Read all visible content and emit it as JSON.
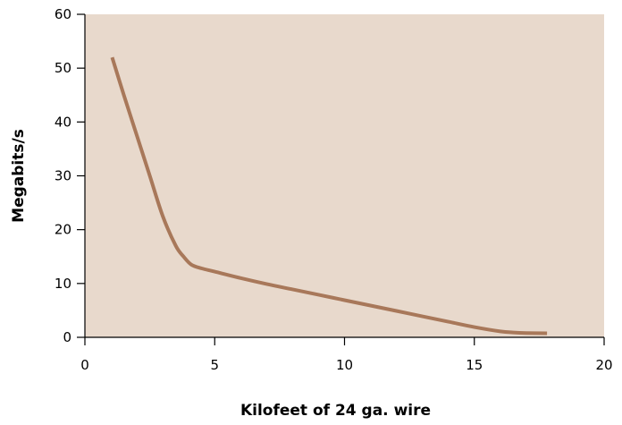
{
  "chart_data": {
    "type": "line",
    "title": "",
    "xlabel": "Kilofeet of 24 ga. wire",
    "ylabel": "Megabits/s",
    "xlim": [
      0,
      20
    ],
    "ylim": [
      0,
      60
    ],
    "x_ticks": [
      0,
      5,
      10,
      15,
      20
    ],
    "y_ticks": [
      0,
      10,
      20,
      30,
      40,
      50,
      60
    ],
    "grid": false,
    "colors": {
      "plot_background": "#e8d9cc",
      "line": "#a8785a",
      "axis": "#000000"
    },
    "series": [
      {
        "x": [
          1.05,
          1.5,
          2.0,
          2.5,
          3.0,
          3.5,
          3.8,
          4.1,
          4.5,
          5,
          6,
          7,
          8,
          9,
          10,
          11,
          12,
          13,
          14,
          15,
          16,
          16.5,
          17,
          17.8
        ],
        "y": [
          52,
          45,
          37.5,
          30,
          22.5,
          17,
          15,
          13.5,
          12.8,
          12.2,
          11,
          9.9,
          8.9,
          7.9,
          6.9,
          5.9,
          4.9,
          3.9,
          2.9,
          1.9,
          1.1,
          0.9,
          0.8,
          0.75
        ]
      }
    ]
  }
}
